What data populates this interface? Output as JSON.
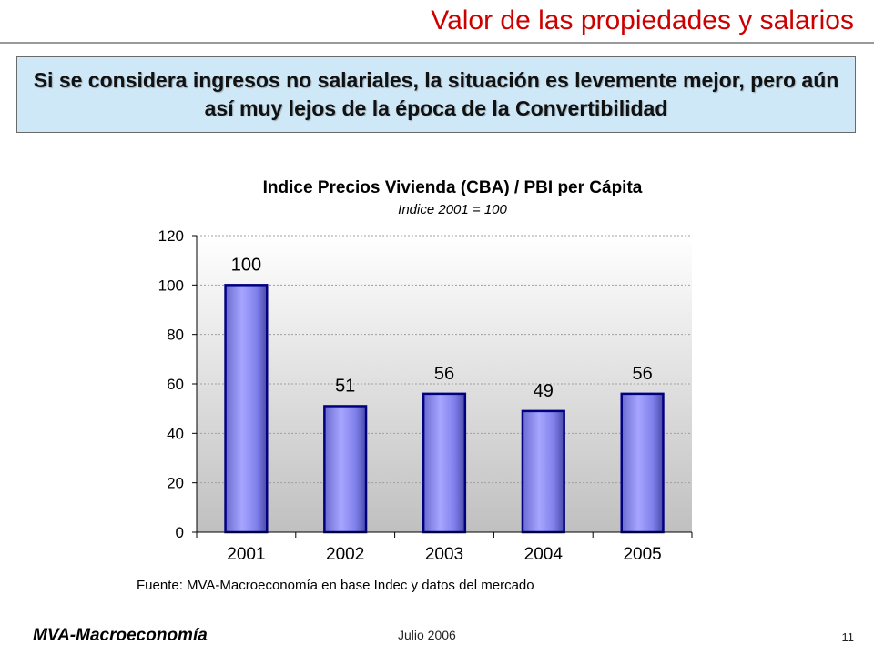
{
  "slide": {
    "title": "Valor de las propiedades  y salarios",
    "callout": "Si se considera ingresos no salariales, la situación es levemente mejor, pero aún así muy lejos de la época de la Convertibilidad"
  },
  "chart_data": {
    "type": "bar",
    "title": "Indice Precios Vivienda (CBA) / PBI per Cápita",
    "subtitle": "Indice 2001 = 100",
    "categories": [
      "2001",
      "2002",
      "2003",
      "2004",
      "2005"
    ],
    "values": [
      100,
      51,
      56,
      49,
      56
    ],
    "data_labels": [
      "100",
      "51",
      "56",
      "49",
      "56"
    ],
    "ylim": [
      0,
      120
    ],
    "yticks": [
      0,
      20,
      40,
      60,
      80,
      100,
      120
    ],
    "grid": true,
    "legend": "none",
    "source": "Fuente: MVA-Macroeconomía en base Indec y datos del mercado",
    "colors": {
      "bar_fill": "#9999ff",
      "bar_edge": "#000080",
      "plot_bg_top": "#ffffff",
      "plot_bg_bottom": "#c0c0c0",
      "gridline": "#a0a0a0"
    }
  },
  "footer": {
    "brand": "MVA-Macroeconomía",
    "date": "Julio  2006",
    "page": "11"
  }
}
